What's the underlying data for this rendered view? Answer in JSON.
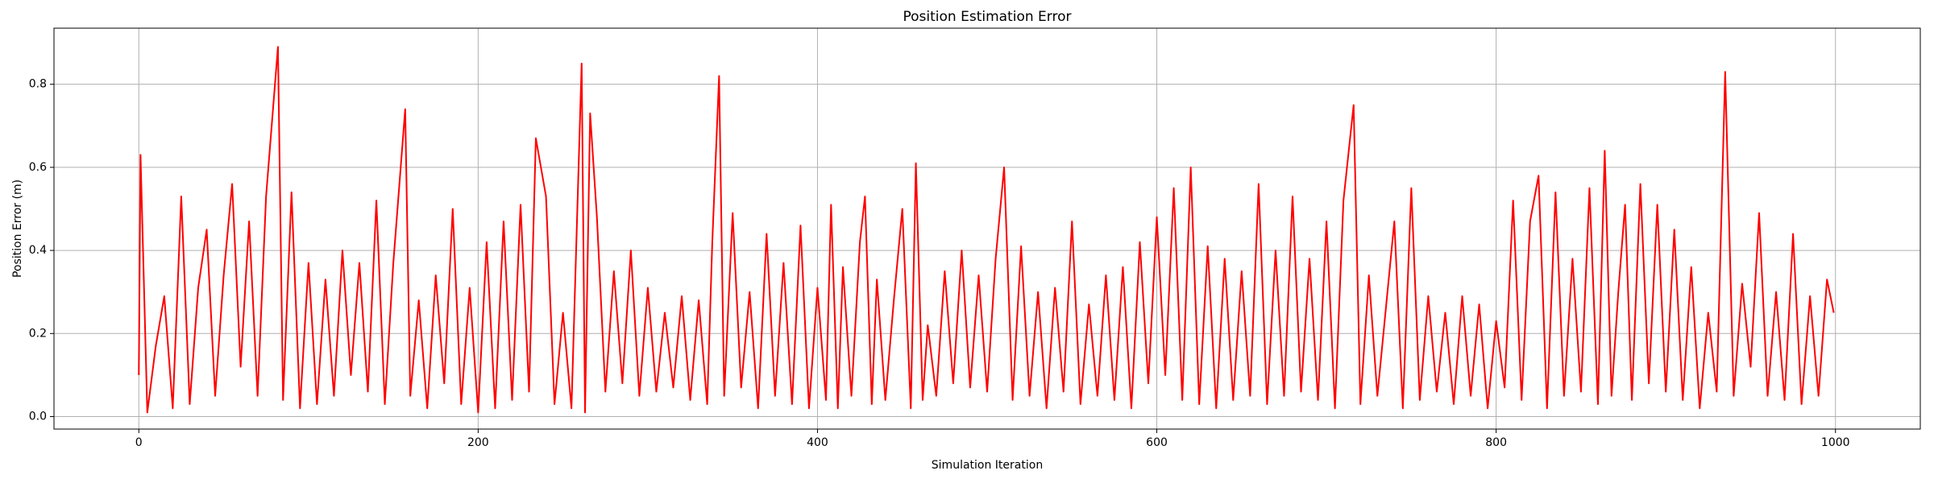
{
  "chart_data": {
    "type": "line",
    "title": "Position Estimation Error",
    "x_label": "Simulation Iteration",
    "y_label": "Position Error (m)",
    "x": [
      0,
      1,
      5,
      10,
      15,
      20,
      25,
      30,
      35,
      40,
      45,
      50,
      55,
      60,
      65,
      70,
      75,
      82,
      85,
      90,
      95,
      100,
      105,
      110,
      115,
      120,
      125,
      130,
      135,
      140,
      145,
      150,
      157,
      160,
      165,
      170,
      175,
      180,
      185,
      190,
      195,
      200,
      205,
      210,
      215,
      220,
      225,
      230,
      234,
      240,
      245,
      250,
      255,
      261,
      263,
      266,
      270,
      275,
      280,
      285,
      290,
      295,
      300,
      305,
      310,
      315,
      320,
      325,
      330,
      335,
      338,
      342,
      345,
      350,
      355,
      360,
      365,
      370,
      375,
      380,
      385,
      390,
      395,
      400,
      405,
      408,
      412,
      415,
      420,
      425,
      428,
      432,
      435,
      440,
      445,
      450,
      455,
      458,
      462,
      465,
      470,
      475,
      480,
      485,
      490,
      495,
      500,
      505,
      510,
      515,
      520,
      525,
      530,
      535,
      540,
      545,
      550,
      555,
      560,
      565,
      570,
      575,
      580,
      585,
      590,
      595,
      600,
      605,
      610,
      615,
      620,
      625,
      630,
      635,
      640,
      645,
      650,
      655,
      660,
      665,
      670,
      675,
      680,
      685,
      690,
      695,
      700,
      705,
      710,
      716,
      720,
      725,
      730,
      735,
      740,
      745,
      750,
      755,
      760,
      765,
      770,
      775,
      780,
      785,
      790,
      795,
      800,
      805,
      810,
      815,
      820,
      825,
      830,
      835,
      840,
      845,
      850,
      855,
      860,
      864,
      868,
      872,
      876,
      880,
      885,
      890,
      895,
      900,
      905,
      910,
      915,
      920,
      925,
      930,
      935,
      940,
      945,
      950,
      955,
      960,
      965,
      970,
      975,
      980,
      985,
      990,
      995,
      999
    ],
    "series": [
      {
        "color": "#ff0000",
        "values": [
          0.1,
          0.63,
          0.01,
          0.17,
          0.29,
          0.02,
          0.53,
          0.03,
          0.31,
          0.45,
          0.05,
          0.34,
          0.56,
          0.12,
          0.47,
          0.05,
          0.53,
          0.89,
          0.04,
          0.54,
          0.02,
          0.37,
          0.03,
          0.33,
          0.05,
          0.4,
          0.1,
          0.37,
          0.06,
          0.52,
          0.03,
          0.37,
          0.74,
          0.05,
          0.28,
          0.02,
          0.34,
          0.08,
          0.5,
          0.03,
          0.31,
          0.01,
          0.42,
          0.02,
          0.47,
          0.04,
          0.51,
          0.06,
          0.67,
          0.53,
          0.03,
          0.25,
          0.02,
          0.85,
          0.01,
          0.73,
          0.48,
          0.06,
          0.35,
          0.08,
          0.4,
          0.05,
          0.31,
          0.06,
          0.25,
          0.07,
          0.29,
          0.04,
          0.28,
          0.03,
          0.42,
          0.82,
          0.05,
          0.49,
          0.07,
          0.3,
          0.02,
          0.44,
          0.05,
          0.37,
          0.03,
          0.46,
          0.02,
          0.31,
          0.04,
          0.51,
          0.02,
          0.36,
          0.05,
          0.42,
          0.53,
          0.03,
          0.33,
          0.04,
          0.28,
          0.5,
          0.02,
          0.61,
          0.04,
          0.22,
          0.05,
          0.35,
          0.08,
          0.4,
          0.07,
          0.34,
          0.06,
          0.38,
          0.6,
          0.04,
          0.41,
          0.05,
          0.3,
          0.02,
          0.31,
          0.06,
          0.47,
          0.03,
          0.27,
          0.05,
          0.34,
          0.04,
          0.36,
          0.02,
          0.42,
          0.08,
          0.48,
          0.1,
          0.55,
          0.04,
          0.6,
          0.03,
          0.41,
          0.02,
          0.38,
          0.04,
          0.35,
          0.05,
          0.56,
          0.03,
          0.4,
          0.05,
          0.53,
          0.06,
          0.38,
          0.04,
          0.47,
          0.02,
          0.52,
          0.75,
          0.03,
          0.34,
          0.05,
          0.26,
          0.47,
          0.02,
          0.55,
          0.04,
          0.29,
          0.06,
          0.25,
          0.03,
          0.29,
          0.05,
          0.27,
          0.02,
          0.23,
          0.07,
          0.52,
          0.04,
          0.47,
          0.58,
          0.02,
          0.54,
          0.05,
          0.38,
          0.06,
          0.55,
          0.03,
          0.64,
          0.05,
          0.3,
          0.51,
          0.04,
          0.56,
          0.08,
          0.51,
          0.06,
          0.45,
          0.04,
          0.36,
          0.02,
          0.25,
          0.06,
          0.83,
          0.05,
          0.32,
          0.12,
          0.49,
          0.05,
          0.3,
          0.04,
          0.44,
          0.03,
          0.29,
          0.05,
          0.33,
          0.25
        ]
      }
    ],
    "xlim": [
      -50,
      1050
    ],
    "ylim": [
      -0.03,
      0.935
    ],
    "xticks": [
      0,
      200,
      400,
      600,
      800,
      1000
    ],
    "yticks": [
      {
        "value": 0,
        "label": "0.0"
      },
      0.2,
      0.4,
      0.6,
      0.8
    ],
    "grid": true
  }
}
